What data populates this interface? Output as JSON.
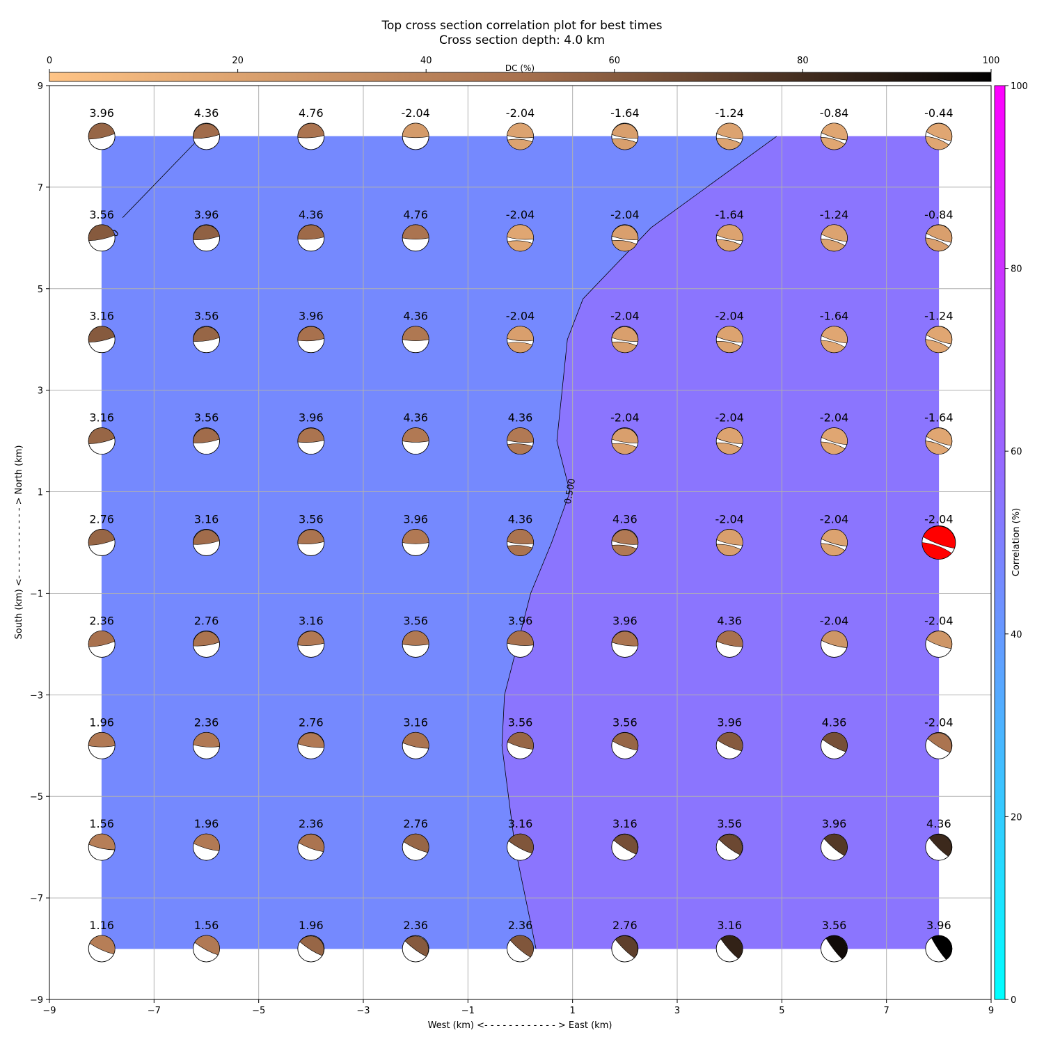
{
  "chart_data": {
    "type": "heatmap",
    "title": "Top cross section correlation plot for best times",
    "subtitle": "Cross section depth: 4.0 km",
    "xlabel": "West (km) <- - - - - - - - - - - - > East (km)",
    "ylabel": "South (km) <- - - - - - - - - - - - > North (km)",
    "xlim": [
      -9,
      9
    ],
    "ylim": [
      -9,
      9
    ],
    "x_ticks": [
      -9,
      -7,
      -5,
      -3,
      -1,
      1,
      3,
      5,
      7,
      9
    ],
    "x_tick_labels": [
      "−9",
      "−7",
      "−5",
      "−3",
      "−1",
      "1",
      "3",
      "5",
      "7",
      "9"
    ],
    "y_ticks": [
      -9,
      -7,
      -5,
      -3,
      -1,
      1,
      3,
      5,
      7,
      9
    ],
    "y_tick_labels": [
      "−9",
      "−7",
      "−5",
      "−3",
      "−1",
      "1",
      "3",
      "5",
      "7",
      "9"
    ],
    "grid": true,
    "x": [
      -8,
      -6,
      -4,
      -2,
      0,
      2,
      4,
      6,
      8
    ],
    "y": [
      8,
      6,
      4,
      2,
      0,
      -2,
      -4,
      -6,
      -8
    ],
    "time_labels": [
      [
        "3.96",
        "4.36",
        "4.76",
        "-2.04",
        "-2.04",
        "-1.64",
        "-1.24",
        "-0.84",
        "-0.44"
      ],
      [
        "3.56",
        "3.96",
        "4.36",
        "4.76",
        "-2.04",
        "-2.04",
        "-1.64",
        "-1.24",
        "-0.84"
      ],
      [
        "3.16",
        "3.56",
        "3.96",
        "4.36",
        "-2.04",
        "-2.04",
        "-2.04",
        "-1.64",
        "-1.24"
      ],
      [
        "3.16",
        "3.56",
        "3.96",
        "4.36",
        "4.36",
        "-2.04",
        "-2.04",
        "-2.04",
        "-1.64"
      ],
      [
        "2.76",
        "3.16",
        "3.56",
        "3.96",
        "4.36",
        "4.36",
        "-2.04",
        "-2.04",
        "-2.04"
      ],
      [
        "2.36",
        "2.76",
        "3.16",
        "3.56",
        "3.96",
        "3.96",
        "4.36",
        "-2.04",
        "-2.04"
      ],
      [
        "1.96",
        "2.36",
        "2.76",
        "3.16",
        "3.56",
        "3.56",
        "3.96",
        "4.36",
        "-2.04"
      ],
      [
        "1.56",
        "1.96",
        "2.36",
        "2.76",
        "3.16",
        "3.16",
        "3.56",
        "3.96",
        "4.36"
      ],
      [
        "1.16",
        "1.56",
        "1.96",
        "2.36",
        "2.36",
        "2.76",
        "3.16",
        "3.56",
        "3.96"
      ]
    ],
    "dc_percent": [
      [
        55,
        52,
        48,
        25,
        20,
        22,
        20,
        18,
        18
      ],
      [
        60,
        57,
        53,
        48,
        18,
        22,
        20,
        20,
        22
      ],
      [
        60,
        55,
        50,
        46,
        22,
        22,
        20,
        18,
        18
      ],
      [
        55,
        52,
        48,
        45,
        45,
        22,
        20,
        18,
        18
      ],
      [
        55,
        52,
        48,
        45,
        48,
        45,
        22,
        20,
        null
      ],
      [
        50,
        48,
        45,
        45,
        50,
        48,
        50,
        28,
        28
      ],
      [
        45,
        45,
        45,
        48,
        55,
        55,
        60,
        65,
        48
      ],
      [
        42,
        45,
        48,
        55,
        62,
        65,
        68,
        75,
        82
      ],
      [
        42,
        45,
        55,
        60,
        62,
        72,
        85,
        95,
        100
      ]
    ],
    "best_solution": {
      "x": 8,
      "y": 0,
      "color": "#ff0000"
    },
    "contour_level_label": "0.500",
    "contour_label_small": "0",
    "correlation_regions": [
      {
        "level": "low",
        "color": "#57a5fe",
        "polygon": [
          [
            -8,
            8
          ],
          [
            -6.1,
            8
          ],
          [
            -7.6,
            6.4
          ],
          [
            -8,
            6
          ]
        ]
      },
      {
        "level": "mid",
        "color": "#7589fe",
        "polygon": [
          [
            -8,
            8
          ],
          [
            4.9,
            8
          ],
          [
            2.5,
            6.2
          ],
          [
            1.2,
            4.8
          ],
          [
            0.9,
            4
          ],
          [
            0.7,
            2
          ],
          [
            0.95,
            1
          ],
          [
            0.6,
            0
          ],
          [
            0.2,
            -1
          ],
          [
            -0.3,
            -3
          ],
          [
            -0.35,
            -4
          ],
          [
            -0.1,
            -6
          ],
          [
            0.1,
            -7
          ],
          [
            0.3,
            -8
          ],
          [
            -8,
            -8
          ]
        ]
      },
      {
        "level": "high",
        "color": "#8b75fe",
        "polygon": [
          [
            4.9,
            8
          ],
          [
            8,
            8
          ],
          [
            8,
            -8
          ],
          [
            0.3,
            -8
          ],
          [
            0.1,
            -7
          ],
          [
            -0.1,
            -6
          ],
          [
            -0.35,
            -4
          ],
          [
            -0.3,
            -3
          ],
          [
            0.2,
            -1
          ],
          [
            0.6,
            0
          ],
          [
            0.95,
            1
          ],
          [
            0.7,
            2
          ],
          [
            0.9,
            4
          ],
          [
            1.2,
            4.8
          ],
          [
            2.5,
            6.2
          ]
        ]
      }
    ],
    "dc_colorbar": {
      "label": "DC (%)",
      "range": [
        0,
        100
      ],
      "ticks": [
        "0",
        "20",
        "40",
        "60",
        "80",
        "100"
      ],
      "color_start": "#ffc486",
      "color_mid": "#a8714e",
      "color_end": "#000000"
    },
    "correlation_colorbar": {
      "label": "Correlation (%)",
      "range": [
        0,
        100
      ],
      "ticks": [
        "0",
        "20",
        "40",
        "60",
        "80",
        "100"
      ],
      "color_start": "#00ffff",
      "color_end": "#ff00ff"
    }
  }
}
